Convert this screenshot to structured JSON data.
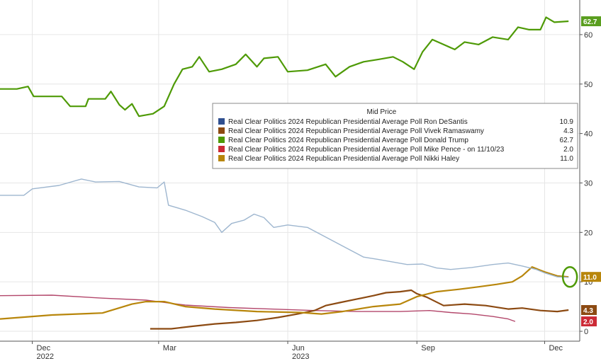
{
  "chart_data": {
    "type": "line",
    "legend": {
      "title": "Mid Price",
      "placement": "center-right"
    },
    "x_ticks": [
      {
        "date": "2022-12-01",
        "label": "Dec",
        "year": "2022"
      },
      {
        "date": "2023-03-01",
        "label": "Mar",
        "year": ""
      },
      {
        "date": "2023-06-01",
        "label": "Jun",
        "year": "2023"
      },
      {
        "date": "2023-09-01",
        "label": "Sep",
        "year": ""
      },
      {
        "date": "2023-12-01",
        "label": "Dec",
        "year": ""
      }
    ],
    "xlim": [
      "2022-11-08",
      "2023-12-26"
    ],
    "ylim": [
      -2,
      67
    ],
    "y_ticks": [
      0,
      10,
      20,
      30,
      40,
      50,
      60
    ],
    "grid": true,
    "series": [
      {
        "name": "Real Clear Politics 2024 Republican Presidential Average Poll Ron DeSantis",
        "color": "#9eb6cf",
        "last_label": "10.9",
        "points": [
          [
            "2022-11-08",
            27.5
          ],
          [
            "2022-11-25",
            27.5
          ],
          [
            "2022-12-01",
            28.8
          ],
          [
            "2022-12-20",
            29.5
          ],
          [
            "2023-01-05",
            30.8
          ],
          [
            "2023-01-15",
            30.2
          ],
          [
            "2023-02-01",
            30.3
          ],
          [
            "2023-02-15",
            29.2
          ],
          [
            "2023-02-28",
            29.0
          ],
          [
            "2023-03-05",
            30.2
          ],
          [
            "2023-03-08",
            25.5
          ],
          [
            "2023-03-20",
            24.5
          ],
          [
            "2023-04-01",
            23.2
          ],
          [
            "2023-04-10",
            22.0
          ],
          [
            "2023-04-15",
            20.0
          ],
          [
            "2023-04-22",
            21.8
          ],
          [
            "2023-05-01",
            22.5
          ],
          [
            "2023-05-08",
            23.7
          ],
          [
            "2023-05-15",
            23.0
          ],
          [
            "2023-05-22",
            21.0
          ],
          [
            "2023-06-01",
            21.5
          ],
          [
            "2023-06-15",
            21.0
          ],
          [
            "2023-06-25",
            19.5
          ],
          [
            "2023-07-05",
            18.0
          ],
          [
            "2023-07-15",
            16.5
          ],
          [
            "2023-07-25",
            15.0
          ],
          [
            "2023-08-05",
            14.5
          ],
          [
            "2023-08-15",
            14.0
          ],
          [
            "2023-08-25",
            13.5
          ],
          [
            "2023-09-05",
            13.6
          ],
          [
            "2023-09-15",
            12.8
          ],
          [
            "2023-09-25",
            12.5
          ],
          [
            "2023-10-10",
            12.9
          ],
          [
            "2023-10-25",
            13.5
          ],
          [
            "2023-11-05",
            13.8
          ],
          [
            "2023-11-15",
            13.2
          ],
          [
            "2023-11-25",
            12.5
          ],
          [
            "2023-12-01",
            11.8
          ],
          [
            "2023-12-10",
            11.0
          ],
          [
            "2023-12-18",
            10.9
          ]
        ]
      },
      {
        "name": "Real Clear Politics 2024 Republican Presidential Average Poll Vivek Ramaswamy",
        "color": "#8c4a12",
        "last_label": "4.3",
        "points": [
          [
            "2023-02-23",
            0.5
          ],
          [
            "2023-03-10",
            0.5
          ],
          [
            "2023-03-25",
            1.0
          ],
          [
            "2023-04-10",
            1.5
          ],
          [
            "2023-04-25",
            1.8
          ],
          [
            "2023-05-10",
            2.2
          ],
          [
            "2023-05-25",
            2.8
          ],
          [
            "2023-06-08",
            3.5
          ],
          [
            "2023-06-20",
            4.2
          ],
          [
            "2023-06-28",
            5.2
          ],
          [
            "2023-07-08",
            5.8
          ],
          [
            "2023-07-20",
            6.5
          ],
          [
            "2023-08-01",
            7.2
          ],
          [
            "2023-08-10",
            7.8
          ],
          [
            "2023-08-20",
            8.0
          ],
          [
            "2023-08-28",
            8.3
          ],
          [
            "2023-09-01",
            7.6
          ],
          [
            "2023-09-08",
            6.9
          ],
          [
            "2023-09-20",
            5.2
          ],
          [
            "2023-10-05",
            5.5
          ],
          [
            "2023-10-20",
            5.2
          ],
          [
            "2023-11-05",
            4.5
          ],
          [
            "2023-11-15",
            4.7
          ],
          [
            "2023-11-28",
            4.2
          ],
          [
            "2023-12-10",
            4.0
          ],
          [
            "2023-12-18",
            4.3
          ]
        ]
      },
      {
        "name": "Real Clear Politics 2024 Republican Presidential Average Poll Donald Trump",
        "color": "#4e9a06",
        "last_label": "62.7",
        "points": [
          [
            "2022-11-08",
            49.0
          ],
          [
            "2022-11-20",
            49.0
          ],
          [
            "2022-11-28",
            49.5
          ],
          [
            "2022-12-02",
            47.5
          ],
          [
            "2022-12-22",
            47.5
          ],
          [
            "2022-12-28",
            45.5
          ],
          [
            "2023-01-08",
            45.5
          ],
          [
            "2023-01-10",
            47.0
          ],
          [
            "2023-01-22",
            47.0
          ],
          [
            "2023-01-26",
            48.5
          ],
          [
            "2023-02-01",
            45.8
          ],
          [
            "2023-02-05",
            44.8
          ],
          [
            "2023-02-10",
            46.0
          ],
          [
            "2023-02-15",
            43.5
          ],
          [
            "2023-02-25",
            44.0
          ],
          [
            "2023-03-05",
            45.5
          ],
          [
            "2023-03-12",
            50.0
          ],
          [
            "2023-03-18",
            53.0
          ],
          [
            "2023-03-25",
            53.5
          ],
          [
            "2023-03-30",
            55.5
          ],
          [
            "2023-04-06",
            52.5
          ],
          [
            "2023-04-15",
            53.0
          ],
          [
            "2023-04-25",
            54.0
          ],
          [
            "2023-05-02",
            56.0
          ],
          [
            "2023-05-10",
            53.5
          ],
          [
            "2023-05-15",
            55.2
          ],
          [
            "2023-05-25",
            55.5
          ],
          [
            "2023-06-01",
            52.5
          ],
          [
            "2023-06-15",
            52.8
          ],
          [
            "2023-06-28",
            54.0
          ],
          [
            "2023-07-05",
            51.5
          ],
          [
            "2023-07-15",
            53.5
          ],
          [
            "2023-07-25",
            54.5
          ],
          [
            "2023-08-05",
            55.0
          ],
          [
            "2023-08-15",
            55.5
          ],
          [
            "2023-08-22",
            54.5
          ],
          [
            "2023-08-30",
            53.0
          ],
          [
            "2023-09-05",
            56.5
          ],
          [
            "2023-09-12",
            59.0
          ],
          [
            "2023-09-20",
            58.0
          ],
          [
            "2023-09-28",
            57.0
          ],
          [
            "2023-10-05",
            58.5
          ],
          [
            "2023-10-15",
            58.0
          ],
          [
            "2023-10-25",
            59.5
          ],
          [
            "2023-11-05",
            59.0
          ],
          [
            "2023-11-12",
            61.5
          ],
          [
            "2023-11-20",
            61.0
          ],
          [
            "2023-11-28",
            61.0
          ],
          [
            "2023-12-02",
            63.5
          ],
          [
            "2023-12-08",
            62.5
          ],
          [
            "2023-12-18",
            62.7
          ]
        ]
      },
      {
        "name": "Real Clear Politics 2024 Republican Presidential Average Poll Mike Pence -   on 11/10/23",
        "color": "#b3476b",
        "last_label": "2.0",
        "points": [
          [
            "2022-11-08",
            7.2
          ],
          [
            "2022-12-15",
            7.3
          ],
          [
            "2023-01-20",
            6.7
          ],
          [
            "2023-02-20",
            6.3
          ],
          [
            "2023-03-20",
            5.3
          ],
          [
            "2023-04-20",
            4.8
          ],
          [
            "2023-05-20",
            4.5
          ],
          [
            "2023-06-20",
            4.2
          ],
          [
            "2023-07-20",
            4.0
          ],
          [
            "2023-08-20",
            4.0
          ],
          [
            "2023-09-10",
            4.2
          ],
          [
            "2023-09-25",
            3.8
          ],
          [
            "2023-10-10",
            3.5
          ],
          [
            "2023-10-25",
            3.0
          ],
          [
            "2023-11-05",
            2.5
          ],
          [
            "2023-11-10",
            2.0
          ]
        ]
      },
      {
        "name": "Real Clear Politics 2024 Republican Presidential Average Poll Nikki Haley",
        "color": "#b8860b",
        "last_label": "11.0",
        "points": [
          [
            "2022-11-08",
            2.5
          ],
          [
            "2022-12-15",
            3.3
          ],
          [
            "2023-01-20",
            3.7
          ],
          [
            "2023-02-10",
            5.5
          ],
          [
            "2023-02-20",
            6.0
          ],
          [
            "2023-03-05",
            6.0
          ],
          [
            "2023-03-20",
            5.0
          ],
          [
            "2023-04-10",
            4.5
          ],
          [
            "2023-05-10",
            4.0
          ],
          [
            "2023-06-10",
            3.8
          ],
          [
            "2023-06-25",
            3.5
          ],
          [
            "2023-07-10",
            4.0
          ],
          [
            "2023-08-01",
            5.0
          ],
          [
            "2023-08-20",
            5.5
          ],
          [
            "2023-09-01",
            7.0
          ],
          [
            "2023-09-15",
            8.0
          ],
          [
            "2023-10-01",
            8.5
          ],
          [
            "2023-10-15",
            9.0
          ],
          [
            "2023-10-28",
            9.5
          ],
          [
            "2023-11-08",
            10.0
          ],
          [
            "2023-11-15",
            11.2
          ],
          [
            "2023-11-22",
            13.0
          ],
          [
            "2023-12-01",
            12.0
          ],
          [
            "2023-12-10",
            11.2
          ],
          [
            "2023-12-18",
            11.0
          ]
        ]
      }
    ],
    "badges": [
      {
        "series": 2,
        "text": "62.7",
        "bg": "#5a9e1f",
        "fg": "#ffffff",
        "at": 62.7
      },
      {
        "series": 4,
        "text": "11.0",
        "bg": "#b8860b",
        "fg": "#ffffff",
        "at": 11.0
      },
      {
        "series": 1,
        "text": "4.3",
        "bg": "#8c4a12",
        "fg": "#ffffff",
        "at": 4.3
      },
      {
        "series": 3,
        "text": "2.0",
        "bg": "#cc2a36",
        "fg": "#ffffff",
        "at": 2.0
      }
    ],
    "highlight_circle": {
      "date": "2023-12-18",
      "value": 11.0,
      "color": "#4e9a06"
    }
  }
}
